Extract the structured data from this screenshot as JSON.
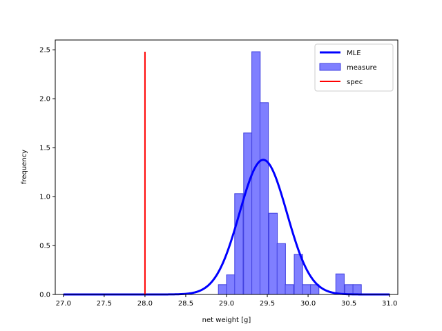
{
  "chart_data": {
    "type": "bar",
    "title": "",
    "xlabel": "net weight [g]",
    "ylabel": "frequency",
    "xlim": [
      26.9,
      31.1
    ],
    "ylim": [
      0,
      2.6
    ],
    "xticks": [
      27.0,
      27.5,
      28.0,
      28.5,
      29.0,
      29.5,
      30.0,
      30.5,
      31.0
    ],
    "xtick_labels": [
      "27.0",
      "27.5",
      "28.0",
      "28.5",
      "29.0",
      "29.5",
      "30.0",
      "30.5",
      "31.0"
    ],
    "yticks": [
      0.0,
      0.5,
      1.0,
      1.5,
      2.0,
      2.5
    ],
    "ytick_labels": [
      "0.0",
      "0.5",
      "1.0",
      "1.5",
      "2.0",
      "2.5"
    ],
    "grid": false,
    "legend_placement": "top-right",
    "histogram": {
      "name": "measure",
      "color": "#7f7fff",
      "edge_color": "#4040e0",
      "bin_width": 0.103,
      "bin_starts": [
        28.9,
        29.0,
        29.1,
        29.21,
        29.31,
        29.41,
        29.52,
        29.62,
        29.72,
        29.83,
        29.93,
        30.03,
        30.14,
        30.24,
        30.34,
        30.45,
        30.55
      ],
      "values": [
        0.1,
        0.2,
        1.03,
        1.65,
        2.48,
        1.96,
        0.83,
        0.52,
        0.1,
        0.41,
        0.1,
        0.1,
        0.0,
        0.0,
        0.21,
        0.1,
        0.1
      ]
    },
    "fit_curve": {
      "name": "MLE",
      "color": "#0000ff",
      "distribution": "normal",
      "mean": 29.45,
      "std": 0.29,
      "x_range": [
        27.0,
        31.0
      ]
    },
    "spec_line": {
      "name": "spec",
      "color": "#ff0000",
      "x": 28.0,
      "y_range": [
        0,
        2.48
      ]
    }
  }
}
